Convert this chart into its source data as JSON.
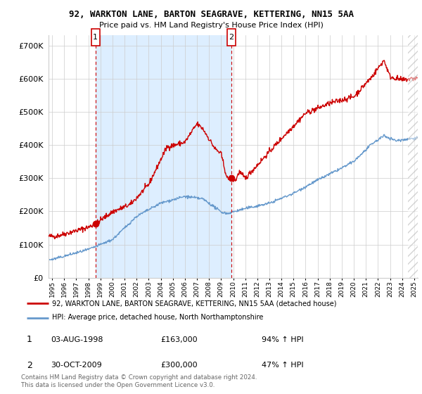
{
  "title": "92, WARKTON LANE, BARTON SEAGRAVE, KETTERING, NN15 5AA",
  "subtitle": "Price paid vs. HM Land Registry's House Price Index (HPI)",
  "legend_line1": "92, WARKTON LANE, BARTON SEAGRAVE, KETTERING, NN15 5AA (detached house)",
  "legend_line2": "HPI: Average price, detached house, North Northamptonshire",
  "transaction1_date": "03-AUG-1998",
  "transaction1_price": "£163,000",
  "transaction1_hpi": "94% ↑ HPI",
  "transaction2_date": "30-OCT-2009",
  "transaction2_price": "£300,000",
  "transaction2_hpi": "47% ↑ HPI",
  "footer": "Contains HM Land Registry data © Crown copyright and database right 2024.\nThis data is licensed under the Open Government Licence v3.0.",
  "red_color": "#cc0000",
  "blue_color": "#6699cc",
  "shade_color": "#ddeeff",
  "grid_color": "#cccccc",
  "marker1_x": 1998.58,
  "marker1_y": 163000,
  "marker2_x": 2009.83,
  "marker2_y": 300000,
  "ylim": [
    0,
    730000
  ],
  "xlim_start": 1994.7,
  "xlim_end": 2025.3
}
